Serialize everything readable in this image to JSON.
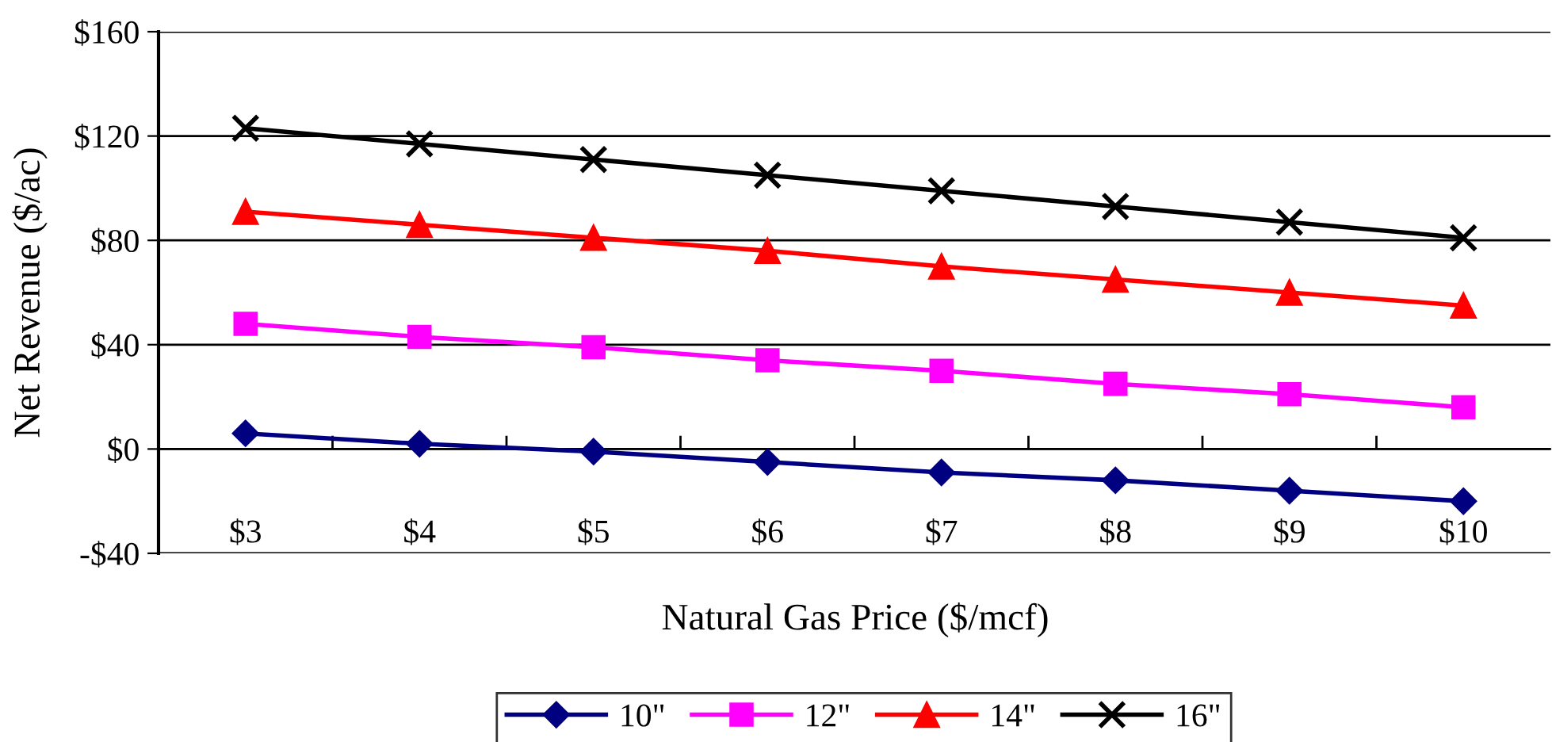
{
  "chart_data": {
    "type": "line",
    "xlabel": "Natural Gas Price ($/mcf)",
    "ylabel": "Net Revenue ($/ac)",
    "categories": [
      "$3",
      "$4",
      "$5",
      "$6",
      "$7",
      "$8",
      "$9",
      "$10"
    ],
    "series": [
      {
        "name": "10\"",
        "color": "#000080",
        "marker": "diamond",
        "values": [
          6,
          2,
          -1,
          -5,
          -9,
          -12,
          -16,
          -20
        ]
      },
      {
        "name": "12\"",
        "color": "#ff00ff",
        "marker": "square",
        "values": [
          48,
          43,
          39,
          34,
          30,
          25,
          21,
          16
        ]
      },
      {
        "name": "14\"",
        "color": "#ff0000",
        "marker": "triangle",
        "values": [
          91,
          86,
          81,
          76,
          70,
          65,
          60,
          55
        ]
      },
      {
        "name": "16\"",
        "color": "#000000",
        "marker": "cross",
        "values": [
          123,
          117,
          111,
          105,
          99,
          93,
          87,
          81
        ]
      }
    ],
    "ylim": [
      -40,
      160
    ],
    "yticks": [
      {
        "value": -40,
        "label": "-$40"
      },
      {
        "value": 0,
        "label": "$0"
      },
      {
        "value": 40,
        "label": "$40"
      },
      {
        "value": 80,
        "label": "$80"
      },
      {
        "value": 120,
        "label": "$120"
      },
      {
        "value": 160,
        "label": "$160"
      }
    ],
    "grid": "y",
    "legend": "bottom",
    "line_style": "solid"
  }
}
